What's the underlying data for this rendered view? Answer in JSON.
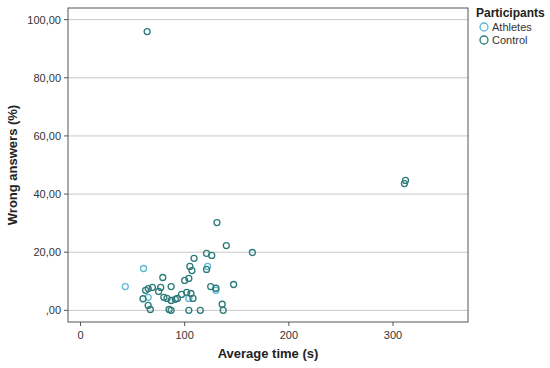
{
  "chart_data": {
    "type": "scatter",
    "x_label": "Average time (s)",
    "y_label": "Wrong answers (%)",
    "legend_title": "Participants",
    "legend": "right",
    "grid": true,
    "marker": "circle_open",
    "xlim": [
      -12,
      372
    ],
    "xticks": [
      0,
      100,
      200,
      300
    ],
    "ylim": [
      -4,
      104
    ],
    "yticks": [
      {
        "value": 0,
        "label": ",00"
      },
      {
        "value": 20,
        "label": "20,00"
      },
      {
        "value": 40,
        "label": "40,00"
      },
      {
        "value": 60,
        "label": "60,00"
      },
      {
        "value": 80,
        "label": "80,00"
      },
      {
        "value": 100,
        "label": "100,00"
      }
    ],
    "series": [
      {
        "name": "Athletes",
        "color": "#5cb8d6",
        "x": [
          43,
          60.5,
          65,
          104,
          122,
          130
        ],
        "values": [
          8.2,
          14.4,
          4.5,
          4.1,
          15.1,
          6.9
        ]
      },
      {
        "name": "Control",
        "color": "#2b7a7a",
        "x": [
          64,
          312,
          311,
          60,
          65,
          69,
          62.5,
          65,
          67,
          77,
          75,
          79,
          80,
          83,
          87,
          85,
          87,
          93,
          87,
          100,
          104,
          102,
          106,
          108,
          104,
          115,
          105,
          109,
          107,
          121,
          121,
          126,
          125,
          130,
          131,
          140,
          136,
          137,
          147,
          165,
          97,
          91
        ],
        "values": [
          95.9,
          44.7,
          43.6,
          4,
          7.5,
          7.9,
          6.9,
          1.7,
          0.3,
          7.9,
          6.5,
          11.3,
          4.5,
          4.1,
          3.4,
          0.3,
          0,
          4.1,
          8.2,
          10.3,
          11,
          6.2,
          5.8,
          4.1,
          0,
          0,
          15.1,
          17.9,
          13.7,
          14.1,
          19.6,
          18.9,
          8.2,
          7.6,
          30.2,
          22.3,
          2.1,
          0,
          8.9,
          19.9,
          5.5,
          3.8
        ]
      }
    ]
  }
}
